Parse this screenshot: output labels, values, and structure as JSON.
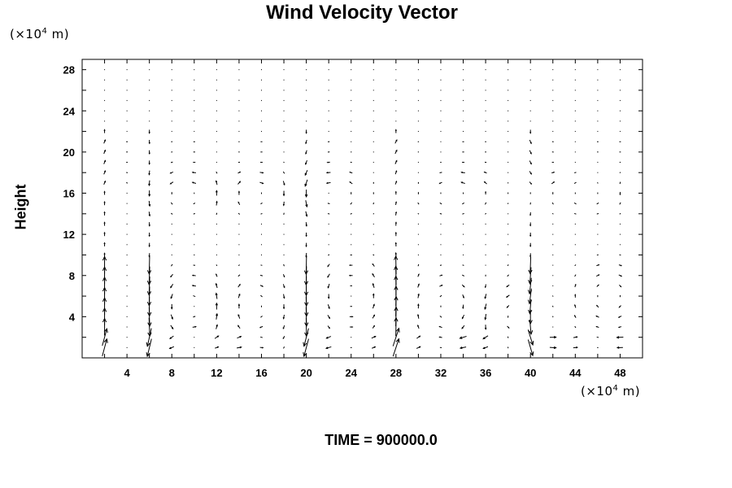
{
  "chart_data": {
    "type": "vector_field",
    "title": "Wind Velocity Vector",
    "ylabel": "Height",
    "xunit_prefix": "(×10",
    "xunit_exp": "4",
    "xunit_suffix": " m)",
    "yunit_prefix": "(×10",
    "yunit_exp": "4",
    "yunit_suffix": " m)",
    "xlim": [
      0,
      50
    ],
    "ylim": [
      0,
      29
    ],
    "xticks": [
      4,
      8,
      12,
      16,
      20,
      24,
      28,
      32,
      36,
      40,
      44,
      48
    ],
    "yticks": [
      4,
      8,
      12,
      16,
      20,
      24,
      28
    ],
    "grid_x_spacing": 2,
    "grid_y_spacing": 1,
    "footer_label": "TIME = 900000.0"
  }
}
